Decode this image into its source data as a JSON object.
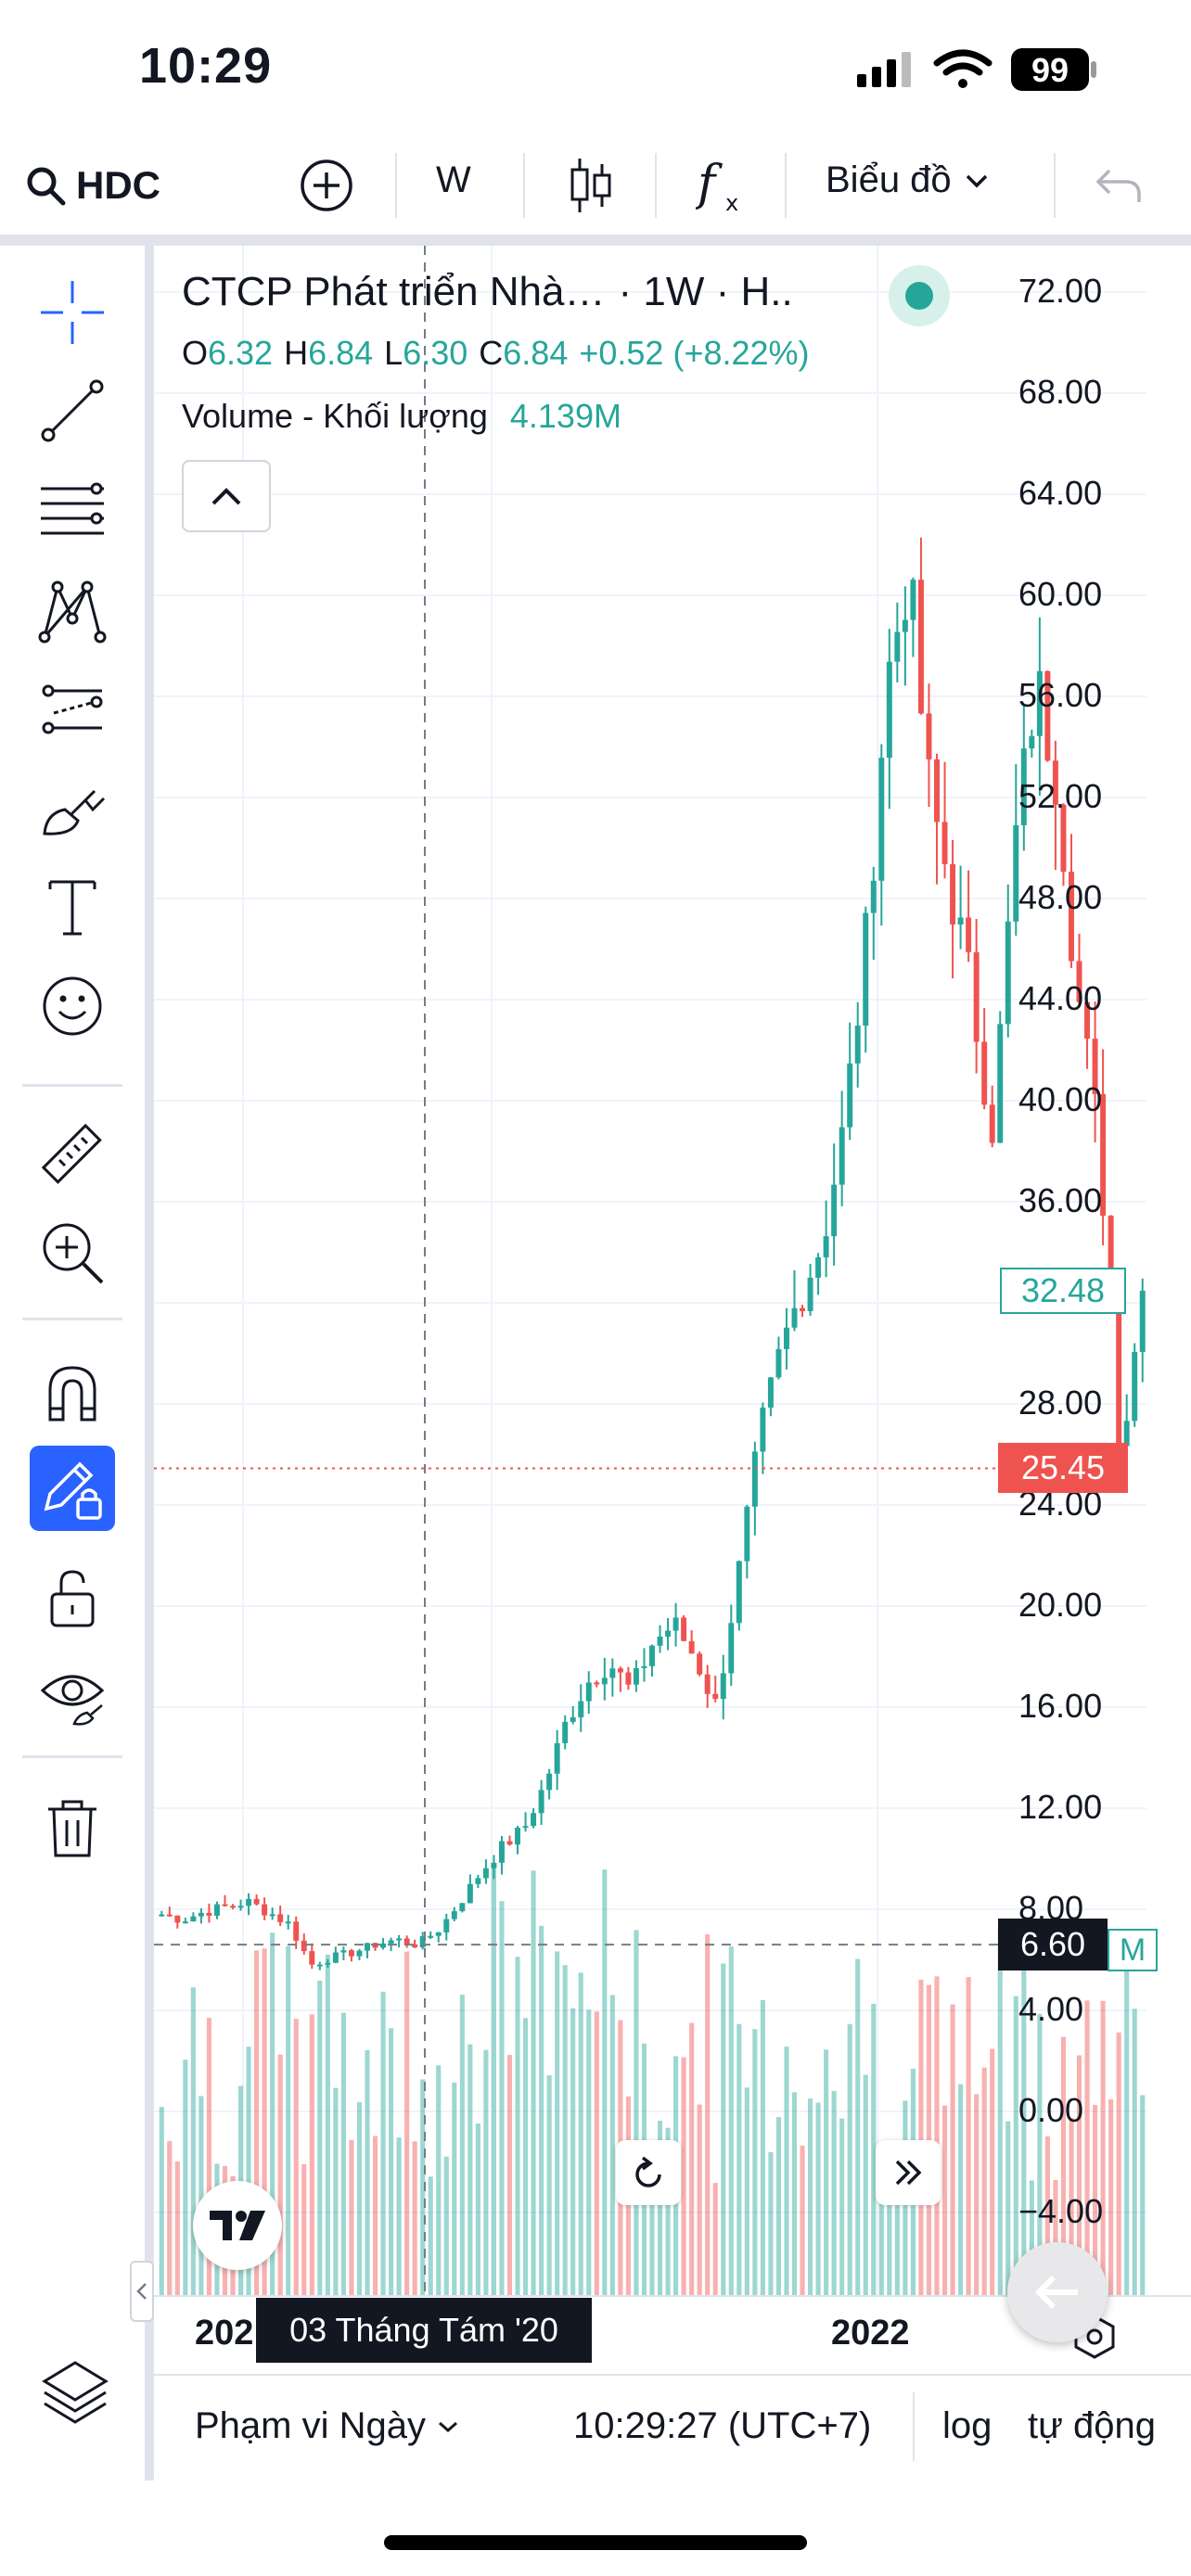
{
  "status_bar": {
    "time": "10:29",
    "battery": "99"
  },
  "toolbar": {
    "symbol": "HDC",
    "interval": "W",
    "layout_label": "Biểu đồ"
  },
  "legend": {
    "title": "CTCP Phát triển Nhà…",
    "timeframe": "· 1W · H..",
    "ohlc": {
      "open_key": "O",
      "open": "6.32",
      "high_key": "H",
      "high": "6.84",
      "low_key": "L",
      "low": "6.30",
      "close_key": "C",
      "close": "6.84",
      "change": "+0.52 (+8.22%)"
    },
    "volume_label": "Volume - Khối lượng",
    "volume_value": "4.139M"
  },
  "price_axis": {
    "labels": [
      "72.00",
      "68.00",
      "64.00",
      "60.00",
      "56.00",
      "52.00",
      "48.00",
      "44.00",
      "40.00",
      "36.00",
      "28.00",
      "24.00",
      "20.00",
      "16.00",
      "12.00",
      "8.00",
      "4.00",
      "0.00",
      "−4.00"
    ],
    "last_price": "32.48",
    "line_price": "25.45",
    "crosshair_price": "6.60",
    "volume_axis_label": "M"
  },
  "time_axis": {
    "labels": [
      "202",
      "2022"
    ],
    "crosshair_time": "03 Tháng Tám '20"
  },
  "bottom_bar": {
    "date_range": "Phạm vi Ngày",
    "clock": "10:29:27 (UTC+7)",
    "log": "log",
    "auto": "tự động"
  },
  "colors": {
    "up": "#26a69a",
    "down": "#ef5350",
    "accent": "#2962ff",
    "grid": "#f0f3fa"
  },
  "icons": {
    "left_panel": [
      "crosshair-icon",
      "trend-line-icon",
      "fib-retracement-icon",
      "pattern-icon",
      "prediction-icon",
      "brush-icon",
      "text-icon",
      "emoji-icon",
      "ruler-icon",
      "zoom-in-icon",
      "magnet-icon",
      "lock-drawing-icon",
      "unlock-icon",
      "eye-icon",
      "trash-icon",
      "layers-icon"
    ]
  },
  "chart_data": {
    "type": "candlestick",
    "interval": "1W",
    "price_scale": {
      "min": -4,
      "max": 72,
      "step": 4
    },
    "approx_close_series": [
      7.8,
      7.6,
      7.9,
      8.1,
      8.3,
      7.9,
      7.4,
      5.8,
      6.1,
      6.3,
      6.6,
      6.8,
      6.6,
      7.2,
      8.3,
      9.5,
      10.5,
      11.2,
      13.0,
      15.5,
      17.0,
      17.8,
      16.6,
      18.5,
      19.3,
      18.0,
      16.0,
      21.0,
      26.5,
      30.0,
      32.5,
      34.5,
      39.0,
      46.0,
      56.5,
      61.0,
      52.0,
      48.5,
      44.0,
      39.0,
      50.0,
      56.5,
      53.0,
      44.0,
      38.0,
      26.0,
      32.48
    ],
    "last_price": 32.48,
    "price_line": 25.45,
    "crosshair_price": 6.6,
    "volume_last": "4.139M"
  }
}
